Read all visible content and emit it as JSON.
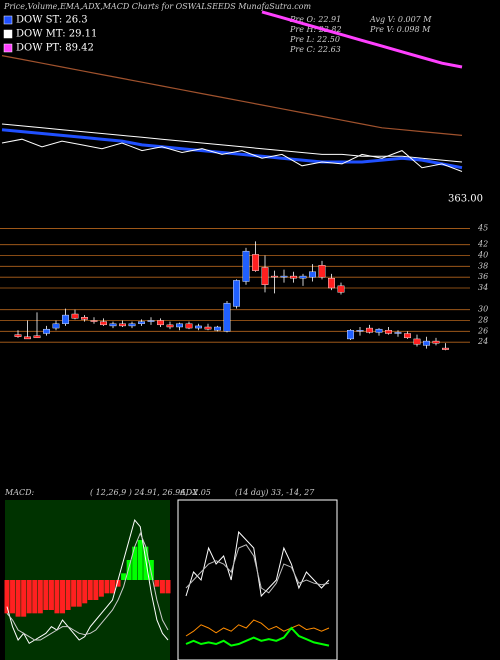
{
  "chart_data": {
    "type": "candlestick",
    "title": "Price,Volume,EMA,ADX,MACD Charts for OSWALSEEDS MunafaSutra.com",
    "legend": [
      {
        "label": "DOW ST: 26.3",
        "color": "#2050ff"
      },
      {
        "label": "DOW MT: 29.11",
        "color": "#ffffff"
      },
      {
        "label": "DOW PT: 89.42",
        "color": "#ff40ff"
      }
    ],
    "info": [
      "Pre  O: 22.91",
      "Pre  H: 23.82",
      "Pre  L: 22.50",
      "Pre  C: 22.63",
      "Avg V: 0.007 M",
      "Pre  V: 0.098 M"
    ],
    "price_label": "363.00",
    "open": [
      25.4,
      25.0,
      25.2,
      25.6,
      26.6,
      27.4,
      29.2,
      28.6,
      28.0,
      27.8,
      27.0,
      27.4,
      27.0,
      27.4,
      27.8,
      28.0,
      27.2,
      26.8,
      27.4,
      26.6,
      26.8,
      26.2,
      26.0,
      30.6,
      35.2,
      40.2,
      37.8,
      36.2,
      36.0,
      36.2,
      35.8,
      36.0,
      38.2,
      35.8,
      34.4,
      24.6,
      26.0,
      26.6,
      25.8,
      26.2,
      25.6,
      25.6,
      24.6,
      23.4,
      24.2,
      22.91
    ],
    "high": [
      26.2,
      28.0,
      29.5,
      27.0,
      28.0,
      30.2,
      30.0,
      29.0,
      28.6,
      28.4,
      27.8,
      28.0,
      27.8,
      28.2,
      28.6,
      28.4,
      27.8,
      27.6,
      27.8,
      27.4,
      27.4,
      27.0,
      31.6,
      35.6,
      41.4,
      42.6,
      40.0,
      37.2,
      37.4,
      37.0,
      36.6,
      38.4,
      39.0,
      36.6,
      35.0,
      26.4,
      26.8,
      27.2,
      26.6,
      26.8,
      26.2,
      26.0,
      25.4,
      25.0,
      24.8,
      23.82
    ],
    "low": [
      24.8,
      24.6,
      24.8,
      25.2,
      26.2,
      27.0,
      28.2,
      27.8,
      27.4,
      27.0,
      26.6,
      26.8,
      26.6,
      27.0,
      27.2,
      26.8,
      26.4,
      26.2,
      26.4,
      26.2,
      26.2,
      26.0,
      25.8,
      30.2,
      34.6,
      37.0,
      33.2,
      33.0,
      35.0,
      35.0,
      34.4,
      35.2,
      35.6,
      33.6,
      32.8,
      24.4,
      25.2,
      25.6,
      25.2,
      25.4,
      25.0,
      24.6,
      23.2,
      22.8,
      23.4,
      22.5
    ],
    "close": [
      25.0,
      24.6,
      24.8,
      26.4,
      27.4,
      29.0,
      28.4,
      28.2,
      27.8,
      27.2,
      27.4,
      27.0,
      27.4,
      27.8,
      28.0,
      27.2,
      26.8,
      27.4,
      26.6,
      27.0,
      26.4,
      26.8,
      31.2,
      35.4,
      40.8,
      37.2,
      34.6,
      36.0,
      36.2,
      35.8,
      36.2,
      37.0,
      36.0,
      34.0,
      33.2,
      26.2,
      26.2,
      25.8,
      26.4,
      25.6,
      25.8,
      24.8,
      23.6,
      24.2,
      23.8,
      22.63
    ],
    "up_color": "#2060ff",
    "down_color": "#ff2020",
    "ylim": [
      22,
      46
    ],
    "yticks": [
      45,
      42,
      40,
      38,
      36,
      34,
      30,
      28,
      26,
      24
    ],
    "ema_ylim": [
      0,
      100
    ],
    "ema_series": [
      {
        "name": "DOW PT",
        "color": "#ff40ff",
        "width": 3,
        "values": [
          null,
          null,
          null,
          null,
          null,
          null,
          null,
          null,
          null,
          null,
          null,
          null,
          null,
          99,
          96,
          93,
          90,
          87,
          84,
          81,
          78,
          75,
          72,
          70
        ]
      },
      {
        "name": "EMA long",
        "color": "#a0522d",
        "width": 1.2,
        "values": [
          76,
          74,
          72,
          70,
          68,
          66,
          64,
          62,
          60,
          58,
          56,
          54,
          52,
          50,
          48,
          46,
          44,
          42,
          40,
          38,
          37,
          36,
          35,
          34
        ]
      },
      {
        "name": "DOW MT",
        "color": "#ffffff",
        "width": 1,
        "values": [
          40,
          39,
          38,
          37,
          36,
          35,
          34,
          33,
          32,
          31,
          30,
          29,
          28,
          27,
          26,
          25,
          24,
          24,
          23,
          23,
          23,
          22,
          21,
          20
        ]
      },
      {
        "name": "DOW ST",
        "color": "#2050ff",
        "width": 3,
        "values": [
          37,
          36,
          35,
          34,
          33,
          32,
          31,
          29,
          28,
          27,
          26,
          25,
          24,
          23,
          22,
          21,
          20,
          20,
          20,
          21,
          22,
          21,
          19,
          17
        ]
      },
      {
        "name": "Price",
        "color": "#ffffff",
        "width": 1,
        "values": [
          30,
          32,
          28,
          31,
          29,
          27,
          30,
          26,
          28,
          25,
          27,
          24,
          26,
          22,
          24,
          18,
          20,
          19,
          24,
          22,
          26,
          17,
          19,
          15
        ]
      }
    ],
    "macd": {
      "label": "MACD:",
      "params": "( 12,26,9 ) 24.91, 26.96, -2.05",
      "ylim": [
        -1.2,
        1.2
      ],
      "hist": [
        -0.5,
        -0.5,
        -0.55,
        -0.55,
        -0.5,
        -0.5,
        -0.5,
        -0.45,
        -0.45,
        -0.5,
        -0.5,
        -0.45,
        -0.4,
        -0.4,
        -0.35,
        -0.3,
        -0.3,
        -0.25,
        -0.2,
        -0.2,
        -0.1,
        0.1,
        0.3,
        0.5,
        0.6,
        0.5,
        0.3,
        -0.1,
        -0.2,
        -0.2
      ],
      "line": [
        -0.4,
        -0.7,
        -0.9,
        -0.8,
        -0.95,
        -0.9,
        -0.85,
        -0.8,
        -0.7,
        -0.75,
        -0.6,
        -0.7,
        -0.8,
        -0.9,
        -0.85,
        -0.7,
        -0.6,
        -0.5,
        -0.4,
        -0.3,
        0.0,
        0.3,
        0.6,
        0.9,
        0.8,
        0.3,
        -0.2,
        -0.6,
        -0.8,
        -0.9
      ],
      "signal": [
        -0.5,
        -0.6,
        -0.75,
        -0.8,
        -0.85,
        -0.9,
        -0.9,
        -0.85,
        -0.8,
        -0.75,
        -0.7,
        -0.7,
        -0.75,
        -0.8,
        -0.82,
        -0.8,
        -0.75,
        -0.65,
        -0.55,
        -0.45,
        -0.3,
        -0.1,
        0.2,
        0.5,
        0.7,
        0.5,
        0.1,
        -0.3,
        -0.6,
        -0.75
      ]
    },
    "adx": {
      "label": "ADX",
      "params": "(14  day) 33, -14, 27",
      "ylim": [
        0,
        100
      ],
      "series": [
        {
          "name": "+DI",
          "color": "#ffffff",
          "values": [
            40,
            55,
            50,
            70,
            60,
            65,
            50,
            80,
            75,
            70,
            40,
            45,
            50,
            70,
            60,
            45,
            55,
            50,
            45,
            50
          ]
        },
        {
          "name": "-DI",
          "color": "#bbbbbb",
          "values": [
            45,
            50,
            55,
            60,
            62,
            60,
            55,
            70,
            72,
            65,
            45,
            42,
            48,
            60,
            58,
            48,
            50,
            48,
            47,
            48
          ]
        },
        {
          "name": "ADX line",
          "color": "#ff8c00",
          "values": [
            15,
            18,
            22,
            20,
            17,
            20,
            18,
            22,
            20,
            25,
            23,
            19,
            21,
            18,
            20,
            22,
            19,
            20,
            18,
            20
          ]
        },
        {
          "name": "ADX trend",
          "color": "#00ff00",
          "values": [
            10,
            12,
            10,
            11,
            10,
            12,
            9,
            10,
            12,
            14,
            12,
            13,
            12,
            14,
            20,
            15,
            13,
            11,
            10,
            9
          ]
        }
      ]
    }
  }
}
